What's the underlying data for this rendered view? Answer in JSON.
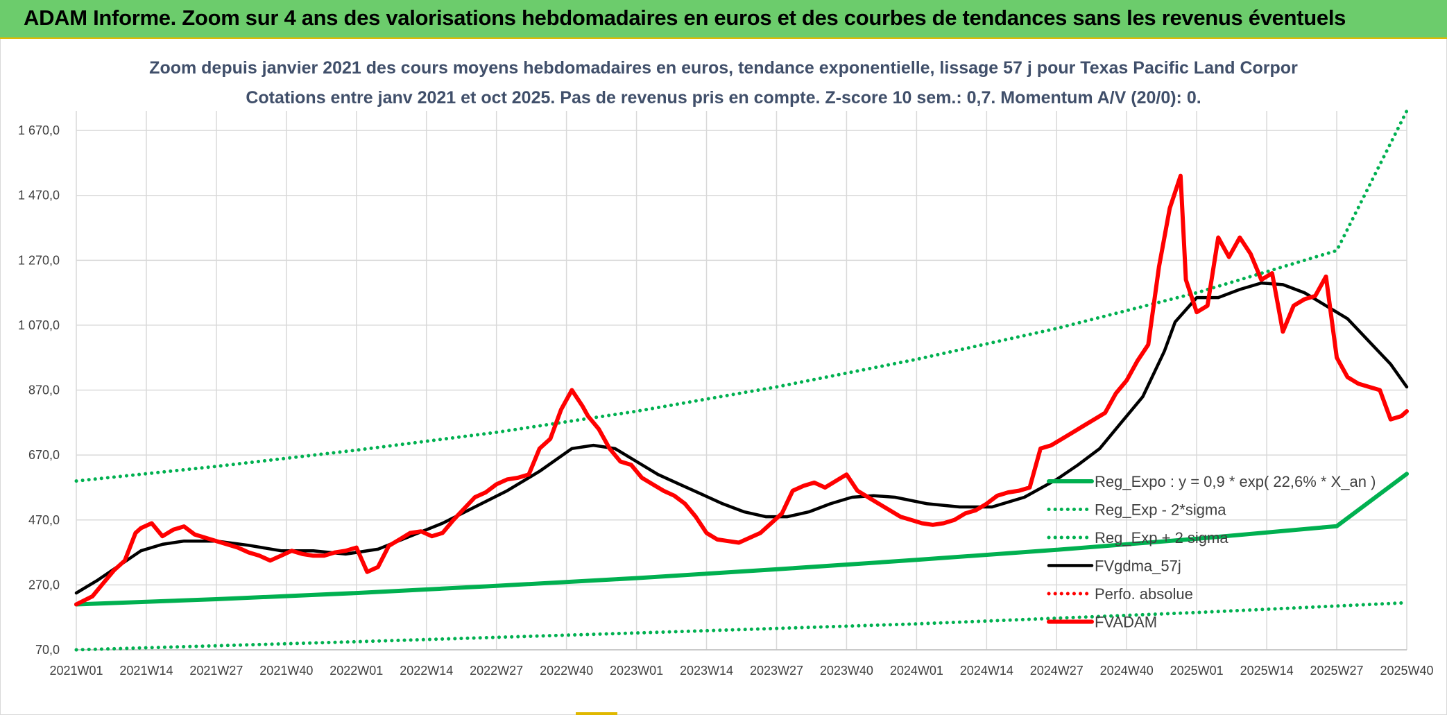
{
  "banner": {
    "title": "ADAM Informe. Zoom sur 4 ans des valorisations hebdomadaires en euros et des courbes de tendances sans les revenus éventuels"
  },
  "colors": {
    "banner": "#6ccc6c",
    "banner_border": "#e0b800",
    "title_text": "#404f6a",
    "regression": "#00b050",
    "price": "#ff0000",
    "moving_average": "#000000",
    "grid": "#d9d9d9"
  },
  "chart_data": {
    "type": "line",
    "title": "Zoom depuis janvier 2021 des cours moyens hebdomadaires en euros, tendance exponentielle, lissage 57 j pour Texas Pacific Land Corpor",
    "subtitle": "Cotations entre janv 2021 et oct 2025. Pas de revenus pris en compte. Z-score 10 sem.: 0,7. Momentum A/V (20/0): 0.",
    "xlabel": "",
    "ylabel": "",
    "x_tick_labels": [
      "2021W01",
      "2021W14",
      "2021W27",
      "2021W40",
      "2022W01",
      "2022W14",
      "2022W27",
      "2022W40",
      "2023W01",
      "2023W14",
      "2023W27",
      "2023W40",
      "2024W01",
      "2024W14",
      "2024W27",
      "2024W40",
      "2025W01",
      "2025W14",
      "2025W27",
      "2025W40"
    ],
    "y_tick_labels": [
      "70,0",
      "270,0",
      "470,0",
      "670,0",
      "870,0",
      "1 070,0",
      "1 270,0",
      "1 470,0",
      "1 670,0"
    ],
    "ylim": [
      70,
      1670
    ],
    "x_unit": "week index (0 = 2021W01, 13 weeks per tick, 247 = 2025W40)",
    "xlim": [
      0,
      247
    ],
    "grid": true,
    "legend_position": "right",
    "series": [
      {
        "name": "Reg_Expo : y = 0,9 * exp( 22,6% * X_an )",
        "style": "solid-thick",
        "color": "#00b050",
        "x": [
          0,
          26,
          52,
          78,
          104,
          130,
          156,
          182,
          208,
          234,
          247
        ],
        "values": [
          210,
          226,
          245,
          267,
          291,
          318,
          347,
          378,
          412,
          451,
          612
        ]
      },
      {
        "name": "Reg_Exp - 2*sigma",
        "style": "dotted",
        "color": "#00b050",
        "x": [
          0,
          52,
          104,
          156,
          208,
          247
        ],
        "values": [
          70,
          95,
          122,
          150,
          185,
          215
        ]
      },
      {
        "name": "Reg_Exp + 2 sigma",
        "style": "dotted",
        "color": "#00b050",
        "x": [
          0,
          26,
          52,
          78,
          104,
          130,
          156,
          182,
          208,
          234,
          247
        ],
        "values": [
          590,
          635,
          685,
          740,
          805,
          880,
          965,
          1060,
          1170,
          1300,
          1730
        ]
      },
      {
        "name": "FVgdma_57j",
        "style": "solid",
        "color": "#000000",
        "x": [
          0,
          4,
          8,
          12,
          16,
          20,
          26,
          32,
          38,
          44,
          50,
          52,
          56,
          62,
          68,
          74,
          80,
          86,
          92,
          96,
          100,
          104,
          108,
          112,
          116,
          120,
          124,
          128,
          132,
          136,
          140,
          144,
          148,
          152,
          158,
          164,
          170,
          176,
          182,
          186,
          190,
          194,
          198,
          202,
          204,
          208,
          212,
          216,
          220,
          224,
          228,
          232,
          236,
          240,
          244,
          247
        ],
        "values": [
          245,
          285,
          330,
          375,
          395,
          405,
          405,
          392,
          375,
          375,
          365,
          370,
          380,
          420,
          460,
          510,
          560,
          620,
          690,
          700,
          690,
          650,
          610,
          580,
          550,
          520,
          495,
          480,
          480,
          495,
          520,
          540,
          545,
          540,
          520,
          510,
          510,
          540,
          595,
          640,
          690,
          770,
          850,
          990,
          1080,
          1155,
          1155,
          1180,
          1200,
          1195,
          1170,
          1130,
          1090,
          1020,
          950,
          880
        ]
      },
      {
        "name": "Perfo. absolue",
        "style": "dotted",
        "color": "#ff0000",
        "x": [],
        "values": []
      },
      {
        "name": "FVADAM",
        "style": "solid-thick",
        "color": "#ff0000",
        "x": [
          0,
          3,
          5,
          7,
          9,
          11,
          12,
          14,
          16,
          18,
          20,
          22,
          24,
          26,
          28,
          30,
          32,
          34,
          36,
          38,
          40,
          42,
          44,
          46,
          48,
          50,
          52,
          54,
          56,
          58,
          60,
          62,
          64,
          66,
          68,
          70,
          72,
          74,
          76,
          78,
          80,
          82,
          84,
          86,
          88,
          90,
          92,
          94,
          95,
          97,
          99,
          101,
          103,
          105,
          107,
          109,
          111,
          113,
          115,
          117,
          119,
          121,
          123,
          125,
          127,
          129,
          131,
          133,
          135,
          137,
          139,
          141,
          143,
          145,
          147,
          149,
          151,
          153,
          155,
          157,
          159,
          161,
          163,
          165,
          167,
          169,
          171,
          173,
          175,
          177,
          179,
          181,
          183,
          185,
          187,
          189,
          191,
          193,
          195,
          197,
          199,
          201,
          203,
          205,
          206,
          208,
          210,
          212,
          214,
          216,
          218,
          220,
          222,
          224,
          226,
          228,
          230,
          232,
          234,
          236,
          238,
          240,
          242,
          244,
          246,
          247
        ],
        "values": [
          210,
          235,
          275,
          315,
          345,
          430,
          445,
          460,
          420,
          440,
          450,
          425,
          415,
          405,
          395,
          385,
          370,
          360,
          345,
          360,
          375,
          365,
          360,
          360,
          370,
          375,
          385,
          310,
          325,
          390,
          410,
          430,
          435,
          420,
          430,
          470,
          505,
          540,
          555,
          580,
          595,
          600,
          610,
          690,
          720,
          810,
          870,
          820,
          790,
          750,
          690,
          650,
          640,
          600,
          580,
          560,
          545,
          520,
          480,
          430,
          410,
          405,
          400,
          415,
          430,
          460,
          490,
          560,
          575,
          585,
          570,
          590,
          610,
          560,
          540,
          520,
          500,
          480,
          470,
          460,
          455,
          460,
          470,
          490,
          500,
          520,
          545,
          555,
          560,
          570,
          690,
          700,
          720,
          740,
          760,
          780,
          800,
          860,
          900,
          960,
          1010,
          1250,
          1430,
          1530,
          1210,
          1110,
          1130,
          1340,
          1280,
          1340,
          1290,
          1210,
          1230,
          1050,
          1130,
          1150,
          1160,
          1220,
          970,
          910,
          890,
          880,
          870,
          780,
          790,
          805
        ]
      }
    ]
  }
}
